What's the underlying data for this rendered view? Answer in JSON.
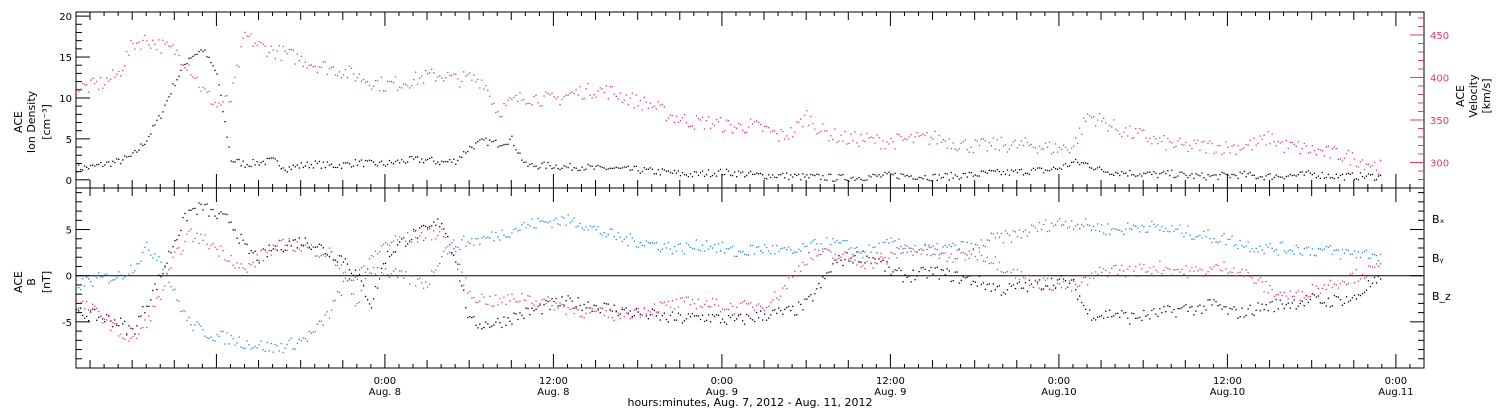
{
  "colors": {
    "black": "#000000",
    "pink": "#e8386b",
    "blue": "#1a87e0"
  },
  "chart_data": [
    {
      "type": "scatter",
      "panel": "plasma",
      "x_range_hours": [
        -22,
        74
      ],
      "left_axis": {
        "title_line1": "ACE",
        "title_line2": "Ion Density",
        "unit": "[cm⁻³]",
        "ylim": [
          -1,
          20.5
        ],
        "ticks": [
          0,
          5,
          10,
          15,
          20
        ],
        "tick_labels": [
          "0",
          "5",
          "10",
          "15",
          "20"
        ]
      },
      "right_axis": {
        "title_line1": "ACE",
        "title_line2": "Velocity",
        "unit": "[km/s]",
        "ylim": [
          270,
          477
        ],
        "ticks": [
          300,
          350,
          400,
          450
        ],
        "tick_labels": [
          "300",
          "350",
          "400",
          "450"
        ]
      },
      "series": [
        {
          "color": "#000000",
          "axis": "left",
          "x": [
            -22,
            -21,
            -20,
            -19,
            -18,
            -17,
            -16,
            -15,
            -14,
            -13,
            -12,
            -11,
            -10,
            -9,
            -8,
            -7,
            -6,
            -5,
            -4,
            -3,
            -2,
            -1,
            0,
            1,
            2,
            3,
            4,
            5,
            6,
            7,
            8,
            9,
            10,
            11,
            12,
            13,
            14,
            15,
            16,
            17,
            18,
            19,
            20,
            21,
            22,
            23,
            24,
            25,
            26,
            27,
            28,
            29,
            30,
            31,
            32,
            33,
            34,
            35,
            36,
            37,
            38,
            39,
            40,
            41,
            42,
            43,
            44,
            45,
            46,
            47,
            48,
            49,
            50,
            51,
            52,
            53,
            54,
            55,
            56,
            57,
            58,
            59,
            60,
            61,
            62,
            63,
            64,
            65,
            66,
            67,
            68,
            69,
            70,
            71
          ],
          "values": [
            1.5,
            1.6,
            2,
            2.3,
            3,
            5,
            8,
            12,
            15,
            16,
            13,
            2.5,
            2,
            2.2,
            2.4,
            1.5,
            1.8,
            2,
            1.8,
            1.9,
            2.2,
            2,
            2,
            2.3,
            2.5,
            2.5,
            2.2,
            2.4,
            4,
            4.8,
            4.5,
            5,
            1.8,
            1.8,
            1.8,
            1.6,
            1.7,
            1.4,
            1.5,
            1.3,
            1.3,
            1.1,
            1,
            0.8,
            0.7,
            0.9,
            1,
            0.9,
            0.7,
            0.6,
            0.6,
            0.5,
            0.4,
            0.4,
            0.3,
            0.3,
            0.4,
            0.5,
            0.6,
            0.6,
            0.5,
            0.4,
            0.5,
            0.6,
            0.7,
            0.9,
            0.9,
            1,
            1.2,
            1.2,
            1.5,
            2.2,
            2,
            1.2,
            1,
            0.9,
            0.8,
            0.7,
            0.8,
            0.6,
            0.5,
            0.5,
            0.6,
            0.7,
            0.5,
            0.5,
            0.6,
            0.6,
            0.8,
            0.6,
            0.5,
            0.5,
            0.5,
            0.4
          ]
        },
        {
          "color": "#e8386b",
          "axis": "right",
          "x": [
            -22,
            -21,
            -20,
            -19,
            -18,
            -17,
            -16,
            -15,
            -14,
            -13,
            -12,
            -11,
            -10,
            -9,
            -8,
            -7,
            -6,
            -5,
            -4,
            -3,
            -2,
            -1,
            0,
            1,
            2,
            3,
            4,
            5,
            6,
            7,
            8,
            9,
            10,
            11,
            12,
            13,
            14,
            15,
            16,
            17,
            18,
            19,
            20,
            21,
            22,
            23,
            24,
            25,
            26,
            27,
            28,
            29,
            30,
            31,
            32,
            33,
            34,
            35,
            36,
            37,
            38,
            39,
            40,
            41,
            42,
            43,
            44,
            45,
            46,
            47,
            48,
            49,
            50,
            51,
            52,
            53,
            54,
            55,
            56,
            57,
            58,
            59,
            60,
            61,
            62,
            63,
            64,
            65,
            66,
            67,
            68,
            69,
            70,
            71
          ],
          "values": [
            388,
            390,
            395,
            405,
            440,
            445,
            438,
            432,
            415,
            385,
            368,
            375,
            450,
            438,
            432,
            428,
            422,
            416,
            412,
            408,
            402,
            396,
            392,
            394,
            398,
            402,
            404,
            398,
            400,
            396,
            360,
            372,
            378,
            376,
            374,
            380,
            384,
            386,
            384,
            378,
            372,
            368,
            358,
            352,
            348,
            348,
            345,
            342,
            344,
            340,
            332,
            336,
            356,
            338,
            332,
            328,
            328,
            326,
            325,
            327,
            328,
            330,
            326,
            322,
            320,
            320,
            322,
            320,
            322,
            318,
            317,
            320,
            356,
            350,
            341,
            335,
            332,
            325,
            322,
            319,
            320,
            320,
            318,
            320,
            322,
            330,
            320,
            318,
            315,
            312,
            310,
            305,
            300,
            294
          ]
        }
      ]
    },
    {
      "type": "scatter",
      "panel": "magnetic",
      "x_range_hours": [
        -22,
        74
      ],
      "axis": {
        "title_line1": "ACE",
        "title_line2": "B",
        "unit": "[nT]",
        "ylim": [
          -10,
          9.5
        ],
        "ticks": [
          -5,
          0,
          5
        ],
        "tick_labels": [
          "-5",
          "0",
          "5"
        ]
      },
      "zero_line": 0,
      "legend_placement": "right",
      "series": [
        {
          "name": "Bₓ",
          "color": "#000000",
          "x": [
            -22,
            -21,
            -20,
            -19,
            -18,
            -17,
            -16,
            -15,
            -14,
            -13,
            -12,
            -11,
            -10,
            -9,
            -8,
            -7,
            -6,
            -5,
            -4,
            -3,
            -2,
            -1,
            0,
            1,
            2,
            3,
            4,
            5,
            6,
            7,
            8,
            9,
            10,
            11,
            12,
            13,
            14,
            15,
            16,
            17,
            18,
            19,
            20,
            21,
            22,
            23,
            24,
            25,
            26,
            27,
            28,
            29,
            30,
            31,
            32,
            33,
            34,
            35,
            36,
            37,
            38,
            39,
            40,
            41,
            42,
            43,
            44,
            45,
            46,
            47,
            48,
            49,
            50,
            51,
            52,
            53,
            54,
            55,
            56,
            57,
            58,
            59,
            60,
            61,
            62,
            63,
            64,
            65,
            66,
            67,
            68,
            69,
            70,
            71
          ],
          "values": [
            -4,
            -4.2,
            -4.5,
            -5,
            -6,
            -3,
            0,
            4,
            7,
            7.5,
            6.5,
            6,
            3,
            2,
            3,
            3.5,
            3.8,
            3.5,
            2.5,
            2,
            0,
            -3,
            2,
            3.5,
            4.5,
            5,
            6,
            2,
            -5,
            -5.2,
            -5,
            -4.5,
            -4,
            -3.5,
            -3,
            -2.8,
            -3,
            -3.2,
            -3.5,
            -3.8,
            -4,
            -4.2,
            -4.5,
            -4.6,
            -4.5,
            -4.4,
            -4.7,
            -4.8,
            -4.5,
            -4.2,
            -4,
            -3.8,
            -3,
            -1,
            1.5,
            2,
            2.2,
            1.8,
            0.5,
            0,
            0.2,
            0.5,
            0.2,
            -0.2,
            -0.5,
            -1,
            -1.5,
            -1.2,
            -1,
            -0.8,
            -0.5,
            -1,
            -4,
            -4.2,
            -4,
            -4.5,
            -4.3,
            -4,
            -3.8,
            -3.5,
            -3.5,
            -3,
            -3.8,
            -4,
            -3.5,
            -3.2,
            -3,
            -2.8,
            -2.5,
            -2.8,
            -2.5,
            -2.5,
            -1,
            -0.5
          ]
        },
        {
          "name": "Bᵧ",
          "color": "#1a87e0",
          "x": [
            -22,
            -21,
            -20,
            -19,
            -18,
            -17,
            -16,
            -15,
            -14,
            -13,
            -12,
            -11,
            -10,
            -9,
            -8,
            -7,
            -6,
            -5,
            -4,
            -3,
            -2,
            -1,
            0,
            1,
            2,
            3,
            4,
            5,
            6,
            7,
            8,
            9,
            10,
            11,
            12,
            13,
            14,
            15,
            16,
            17,
            18,
            19,
            20,
            21,
            22,
            23,
            24,
            25,
            26,
            27,
            28,
            29,
            30,
            31,
            32,
            33,
            34,
            35,
            36,
            37,
            38,
            39,
            40,
            41,
            42,
            43,
            44,
            45,
            46,
            47,
            48,
            49,
            50,
            51,
            52,
            53,
            54,
            55,
            56,
            57,
            58,
            59,
            60,
            61,
            62,
            63,
            64,
            65,
            66,
            67,
            68,
            69,
            70,
            71
          ],
          "values": [
            -1,
            -0.5,
            -0.2,
            0,
            1,
            3,
            2,
            -2,
            -5,
            -6,
            -6.5,
            -6.8,
            -7.2,
            -7.5,
            -7.8,
            -7.5,
            -7,
            -6,
            -4,
            -1,
            0.2,
            0.8,
            0.5,
            0,
            -0.5,
            -0.8,
            2.5,
            3.5,
            3.8,
            4,
            4.5,
            5,
            5.5,
            5.8,
            6,
            6,
            5.8,
            5,
            4.5,
            4,
            3.8,
            3.5,
            3.2,
            3,
            3.2,
            3.5,
            3,
            2.5,
            2.8,
            3,
            2.8,
            2.5,
            3,
            3.5,
            3.5,
            3.2,
            2.5,
            3,
            3.5,
            3.2,
            3,
            2.8,
            3,
            3.2,
            3,
            4,
            4.2,
            4.5,
            5,
            5.5,
            5.8,
            5.8,
            5.5,
            5.2,
            5,
            5.2,
            5.5,
            5.2,
            5,
            4.8,
            4.5,
            4.2,
            4,
            3.5,
            3.2,
            3,
            3,
            3,
            2.8,
            2.8,
            2.5,
            2.5,
            2.4,
            2.3
          ]
        },
        {
          "name": "B_z",
          "color": "#e8386b",
          "x": [
            -22,
            -21,
            -20,
            -19,
            -18,
            -17,
            -16,
            -15,
            -14,
            -13,
            -12,
            -11,
            -10,
            -9,
            -8,
            -7,
            -6,
            -5,
            -4,
            -3,
            -2,
            -1,
            0,
            1,
            2,
            3,
            4,
            5,
            6,
            7,
            8,
            9,
            10,
            11,
            12,
            13,
            14,
            15,
            16,
            17,
            18,
            19,
            20,
            21,
            22,
            23,
            24,
            25,
            26,
            27,
            28,
            29,
            30,
            31,
            32,
            33,
            34,
            35,
            36,
            37,
            38,
            39,
            40,
            41,
            42,
            43,
            44,
            45,
            46,
            47,
            48,
            49,
            50,
            51,
            52,
            53,
            54,
            55,
            56,
            57,
            58,
            59,
            60,
            61,
            62,
            63,
            64,
            65,
            66,
            67,
            68,
            69,
            70,
            71
          ],
          "values": [
            -3,
            -3.5,
            -4.5,
            -6,
            -7,
            -5,
            -2,
            2,
            4.5,
            4,
            3,
            2,
            0.5,
            2,
            3,
            3.5,
            3.2,
            2.8,
            2.5,
            0.5,
            -3,
            2,
            3.5,
            4,
            4.2,
            4.5,
            4.8,
            2,
            -2,
            -2.5,
            -2.8,
            -2.5,
            -2.2,
            -2.8,
            -3,
            -3.5,
            -3.8,
            -4,
            -4.2,
            -4,
            -3.8,
            -3.5,
            -3.2,
            -3,
            -2.8,
            -3,
            -3.2,
            -3.5,
            -3.2,
            -3,
            -2,
            0,
            2,
            2.5,
            2.2,
            2,
            1.5,
            1.5,
            2,
            3,
            2.8,
            2.5,
            2,
            2.2,
            2.5,
            2,
            1,
            0.2,
            -0.5,
            -0.8,
            -1,
            -1.2,
            -0.5,
            0.5,
            0.8,
            0.5,
            0.8,
            1,
            0.8,
            0.5,
            0.5,
            0.8,
            1,
            0.5,
            -0.5,
            -1.5,
            -2,
            -2.2,
            -1.5,
            -1,
            -0.5,
            0,
            0.5,
            1
          ]
        }
      ]
    }
  ],
  "x_axis": {
    "title": "hours:minutes, Aug.  7, 2012 - Aug. 11, 2012",
    "major_ticks": [
      {
        "h": 0,
        "time": "0:00",
        "date": "Aug. 8"
      },
      {
        "h": 12,
        "time": "12:00",
        "date": "Aug. 8"
      },
      {
        "h": 24,
        "time": "0:00",
        "date": "Aug. 9"
      },
      {
        "h": 36,
        "time": "12:00",
        "date": "Aug. 9"
      },
      {
        "h": 48,
        "time": "0:00",
        "date": "Aug.10"
      },
      {
        "h": 60,
        "time": "12:00",
        "date": "Aug.10"
      },
      {
        "h": 72,
        "time": "0:00",
        "date": "Aug.11"
      }
    ]
  }
}
